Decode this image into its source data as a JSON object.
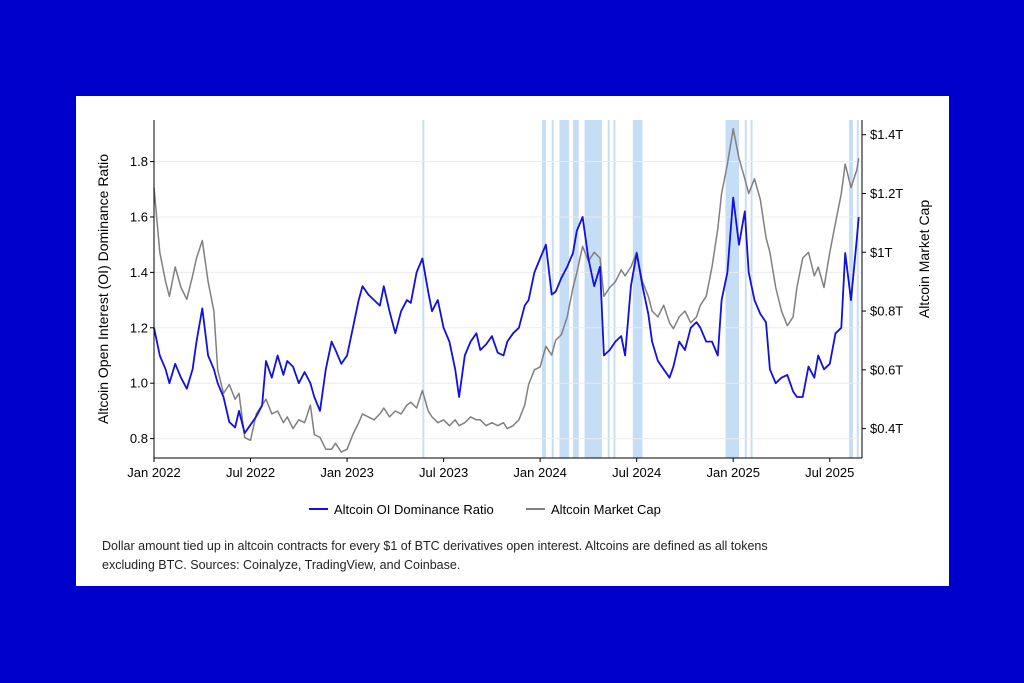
{
  "colors": {
    "background": "#0000cc",
    "card": "#ffffff",
    "dominance_line": "#1010e0",
    "marketcap_line": "#808080",
    "highlight_band": "#c6ddf6"
  },
  "caption": "Dollar amount tied up in altcoin contracts for every $1 of BTC derivatives open interest. Altcoins are defined as all tokens excluding BTC. Sources: Coinalyze, TradingView, and Coinbase.",
  "chart_data": {
    "type": "line",
    "title": "",
    "xlabel": "",
    "ylabel": "Altcoin Open Interest (OI) Dominance Ratio",
    "y2label": "Altcoin Market Cap",
    "xlim": [
      2022.0,
      2025.667
    ],
    "ylim": [
      0.73,
      1.95
    ],
    "y2lim": [
      0.3,
      1.45
    ],
    "x_ticks": [
      {
        "value": 2022.0,
        "label": "Jan 2022"
      },
      {
        "value": 2022.5,
        "label": "Jul 2022"
      },
      {
        "value": 2023.0,
        "label": "Jan 2023"
      },
      {
        "value": 2023.5,
        "label": "Jul 2023"
      },
      {
        "value": 2024.0,
        "label": "Jan 2024"
      },
      {
        "value": 2024.5,
        "label": "Jul 2024"
      },
      {
        "value": 2025.0,
        "label": "Jan 2025"
      },
      {
        "value": 2025.5,
        "label": "Jul 2025"
      }
    ],
    "y_ticks": [
      {
        "value": 0.8,
        "label": "0.8"
      },
      {
        "value": 1.0,
        "label": "1.0"
      },
      {
        "value": 1.2,
        "label": "1.2"
      },
      {
        "value": 1.4,
        "label": "1.4"
      },
      {
        "value": 1.6,
        "label": "1.6"
      },
      {
        "value": 1.8,
        "label": "1.8"
      }
    ],
    "y2_ticks": [
      {
        "value": 0.4,
        "label": "$0.4T"
      },
      {
        "value": 0.6,
        "label": "$0.6T"
      },
      {
        "value": 0.8,
        "label": "$0.8T"
      },
      {
        "value": 1.0,
        "label": "$1T"
      },
      {
        "value": 1.2,
        "label": "$1.2T"
      },
      {
        "value": 1.4,
        "label": "$1.4T"
      }
    ],
    "legend_position": "bottom-center",
    "highlight_bands": [
      [
        2023.39,
        2023.4
      ],
      [
        2024.01,
        2024.03
      ],
      [
        2024.06,
        2024.07
      ],
      [
        2024.1,
        2024.15
      ],
      [
        2024.17,
        2024.2
      ],
      [
        2024.23,
        2024.32
      ],
      [
        2024.35,
        2024.36
      ],
      [
        2024.38,
        2024.39
      ],
      [
        2024.48,
        2024.53
      ],
      [
        2024.96,
        2025.03
      ],
      [
        2025.06,
        2025.07
      ],
      [
        2025.09,
        2025.1
      ],
      [
        2025.6,
        2025.62
      ],
      [
        2025.64,
        2025.65
      ]
    ],
    "series": [
      {
        "name": "Altcoin OI Dominance Ratio",
        "axis": "left",
        "x": [
          2022.0,
          2022.03,
          2022.06,
          2022.08,
          2022.11,
          2022.14,
          2022.17,
          2022.2,
          2022.22,
          2022.25,
          2022.28,
          2022.31,
          2022.33,
          2022.36,
          2022.39,
          2022.42,
          2022.44,
          2022.47,
          2022.5,
          2022.53,
          2022.56,
          2022.58,
          2022.61,
          2022.64,
          2022.67,
          2022.69,
          2022.72,
          2022.75,
          2022.78,
          2022.81,
          2022.83,
          2022.86,
          2022.89,
          2022.92,
          2022.94,
          2022.97,
          2023.0,
          2023.03,
          2023.06,
          2023.08,
          2023.11,
          2023.14,
          2023.17,
          2023.19,
          2023.22,
          2023.25,
          2023.28,
          2023.31,
          2023.33,
          2023.36,
          2023.39,
          2023.42,
          2023.44,
          2023.47,
          2023.5,
          2023.53,
          2023.56,
          2023.58,
          2023.61,
          2023.64,
          2023.67,
          2023.69,
          2023.72,
          2023.75,
          2023.78,
          2023.81,
          2023.83,
          2023.86,
          2023.89,
          2023.92,
          2023.94,
          2023.97,
          2024.0,
          2024.03,
          2024.06,
          2024.08,
          2024.11,
          2024.14,
          2024.17,
          2024.19,
          2024.22,
          2024.25,
          2024.28,
          2024.31,
          2024.33,
          2024.36,
          2024.39,
          2024.42,
          2024.44,
          2024.47,
          2024.5,
          2024.53,
          2024.56,
          2024.58,
          2024.61,
          2024.64,
          2024.67,
          2024.69,
          2024.72,
          2024.75,
          2024.78,
          2024.81,
          2024.83,
          2024.86,
          2024.89,
          2024.92,
          2024.94,
          2024.97,
          2025.0,
          2025.03,
          2025.06,
          2025.08,
          2025.11,
          2025.14,
          2025.17,
          2025.19,
          2025.22,
          2025.25,
          2025.28,
          2025.31,
          2025.33,
          2025.36,
          2025.39,
          2025.42,
          2025.44,
          2025.47,
          2025.5,
          2025.53,
          2025.56,
          2025.58,
          2025.61,
          2025.64,
          2025.65
        ],
        "values": [
          1.2,
          1.1,
          1.05,
          1.0,
          1.07,
          1.02,
          0.98,
          1.05,
          1.15,
          1.27,
          1.1,
          1.05,
          1.0,
          0.95,
          0.86,
          0.84,
          0.9,
          0.82,
          0.85,
          0.88,
          0.92,
          1.08,
          1.02,
          1.1,
          1.03,
          1.08,
          1.06,
          1.0,
          1.04,
          1.0,
          0.95,
          0.9,
          1.05,
          1.15,
          1.12,
          1.07,
          1.1,
          1.2,
          1.3,
          1.35,
          1.32,
          1.3,
          1.28,
          1.35,
          1.26,
          1.18,
          1.26,
          1.3,
          1.29,
          1.4,
          1.45,
          1.33,
          1.26,
          1.3,
          1.2,
          1.15,
          1.05,
          0.95,
          1.1,
          1.15,
          1.18,
          1.12,
          1.14,
          1.17,
          1.11,
          1.1,
          1.15,
          1.18,
          1.2,
          1.28,
          1.3,
          1.4,
          1.45,
          1.5,
          1.32,
          1.33,
          1.38,
          1.42,
          1.47,
          1.55,
          1.6,
          1.45,
          1.35,
          1.42,
          1.1,
          1.12,
          1.15,
          1.17,
          1.1,
          1.35,
          1.47,
          1.35,
          1.25,
          1.15,
          1.08,
          1.05,
          1.02,
          1.06,
          1.15,
          1.12,
          1.2,
          1.22,
          1.2,
          1.15,
          1.15,
          1.1,
          1.3,
          1.4,
          1.67,
          1.5,
          1.62,
          1.4,
          1.3,
          1.25,
          1.22,
          1.05,
          1.0,
          1.02,
          1.03,
          0.97,
          0.95,
          0.95,
          1.06,
          1.02,
          1.1,
          1.05,
          1.07,
          1.18,
          1.2,
          1.47,
          1.3,
          1.52,
          1.6
        ]
      },
      {
        "name": "Altcoin Market Cap",
        "axis": "right",
        "x": [
          2022.0,
          2022.03,
          2022.06,
          2022.08,
          2022.11,
          2022.14,
          2022.17,
          2022.2,
          2022.22,
          2022.25,
          2022.28,
          2022.31,
          2022.33,
          2022.36,
          2022.39,
          2022.42,
          2022.44,
          2022.47,
          2022.5,
          2022.53,
          2022.56,
          2022.58,
          2022.61,
          2022.64,
          2022.67,
          2022.69,
          2022.72,
          2022.75,
          2022.78,
          2022.81,
          2022.83,
          2022.86,
          2022.89,
          2022.92,
          2022.94,
          2022.97,
          2023.0,
          2023.03,
          2023.06,
          2023.08,
          2023.11,
          2023.14,
          2023.17,
          2023.19,
          2023.22,
          2023.25,
          2023.28,
          2023.31,
          2023.33,
          2023.36,
          2023.39,
          2023.42,
          2023.44,
          2023.47,
          2023.5,
          2023.53,
          2023.56,
          2023.58,
          2023.61,
          2023.64,
          2023.67,
          2023.69,
          2023.72,
          2023.75,
          2023.78,
          2023.81,
          2023.83,
          2023.86,
          2023.89,
          2023.92,
          2023.94,
          2023.97,
          2024.0,
          2024.03,
          2024.06,
          2024.08,
          2024.11,
          2024.14,
          2024.17,
          2024.19,
          2024.22,
          2024.25,
          2024.28,
          2024.31,
          2024.33,
          2024.36,
          2024.39,
          2024.42,
          2024.44,
          2024.47,
          2024.5,
          2024.53,
          2024.56,
          2024.58,
          2024.61,
          2024.64,
          2024.67,
          2024.69,
          2024.72,
          2024.75,
          2024.78,
          2024.81,
          2024.83,
          2024.86,
          2024.89,
          2024.92,
          2024.94,
          2024.97,
          2025.0,
          2025.03,
          2025.06,
          2025.08,
          2025.11,
          2025.14,
          2025.17,
          2025.19,
          2025.22,
          2025.25,
          2025.28,
          2025.31,
          2025.33,
          2025.36,
          2025.39,
          2025.42,
          2025.44,
          2025.47,
          2025.5,
          2025.53,
          2025.56,
          2025.58,
          2025.61,
          2025.64,
          2025.65
        ],
        "values": [
          1.22,
          1.0,
          0.9,
          0.85,
          0.95,
          0.88,
          0.84,
          0.92,
          0.98,
          1.04,
          0.9,
          0.8,
          0.6,
          0.52,
          0.55,
          0.5,
          0.52,
          0.37,
          0.36,
          0.45,
          0.48,
          0.5,
          0.45,
          0.46,
          0.42,
          0.44,
          0.4,
          0.43,
          0.42,
          0.48,
          0.38,
          0.37,
          0.33,
          0.33,
          0.35,
          0.32,
          0.33,
          0.38,
          0.42,
          0.45,
          0.44,
          0.43,
          0.45,
          0.47,
          0.44,
          0.46,
          0.45,
          0.48,
          0.49,
          0.47,
          0.53,
          0.46,
          0.44,
          0.42,
          0.43,
          0.41,
          0.43,
          0.41,
          0.42,
          0.44,
          0.43,
          0.43,
          0.41,
          0.42,
          0.41,
          0.42,
          0.4,
          0.41,
          0.43,
          0.48,
          0.55,
          0.6,
          0.61,
          0.68,
          0.65,
          0.7,
          0.72,
          0.78,
          0.88,
          0.93,
          1.02,
          0.97,
          1.0,
          0.98,
          0.85,
          0.88,
          0.9,
          0.94,
          0.92,
          0.95,
          1.0,
          0.9,
          0.85,
          0.8,
          0.78,
          0.82,
          0.76,
          0.74,
          0.78,
          0.8,
          0.76,
          0.78,
          0.82,
          0.85,
          0.95,
          1.08,
          1.2,
          1.3,
          1.42,
          1.32,
          1.25,
          1.2,
          1.25,
          1.18,
          1.05,
          1.0,
          0.88,
          0.8,
          0.75,
          0.78,
          0.88,
          0.98,
          1.0,
          0.92,
          0.95,
          0.88,
          1.0,
          1.1,
          1.2,
          1.3,
          1.22,
          1.28,
          1.32
        ]
      }
    ]
  }
}
